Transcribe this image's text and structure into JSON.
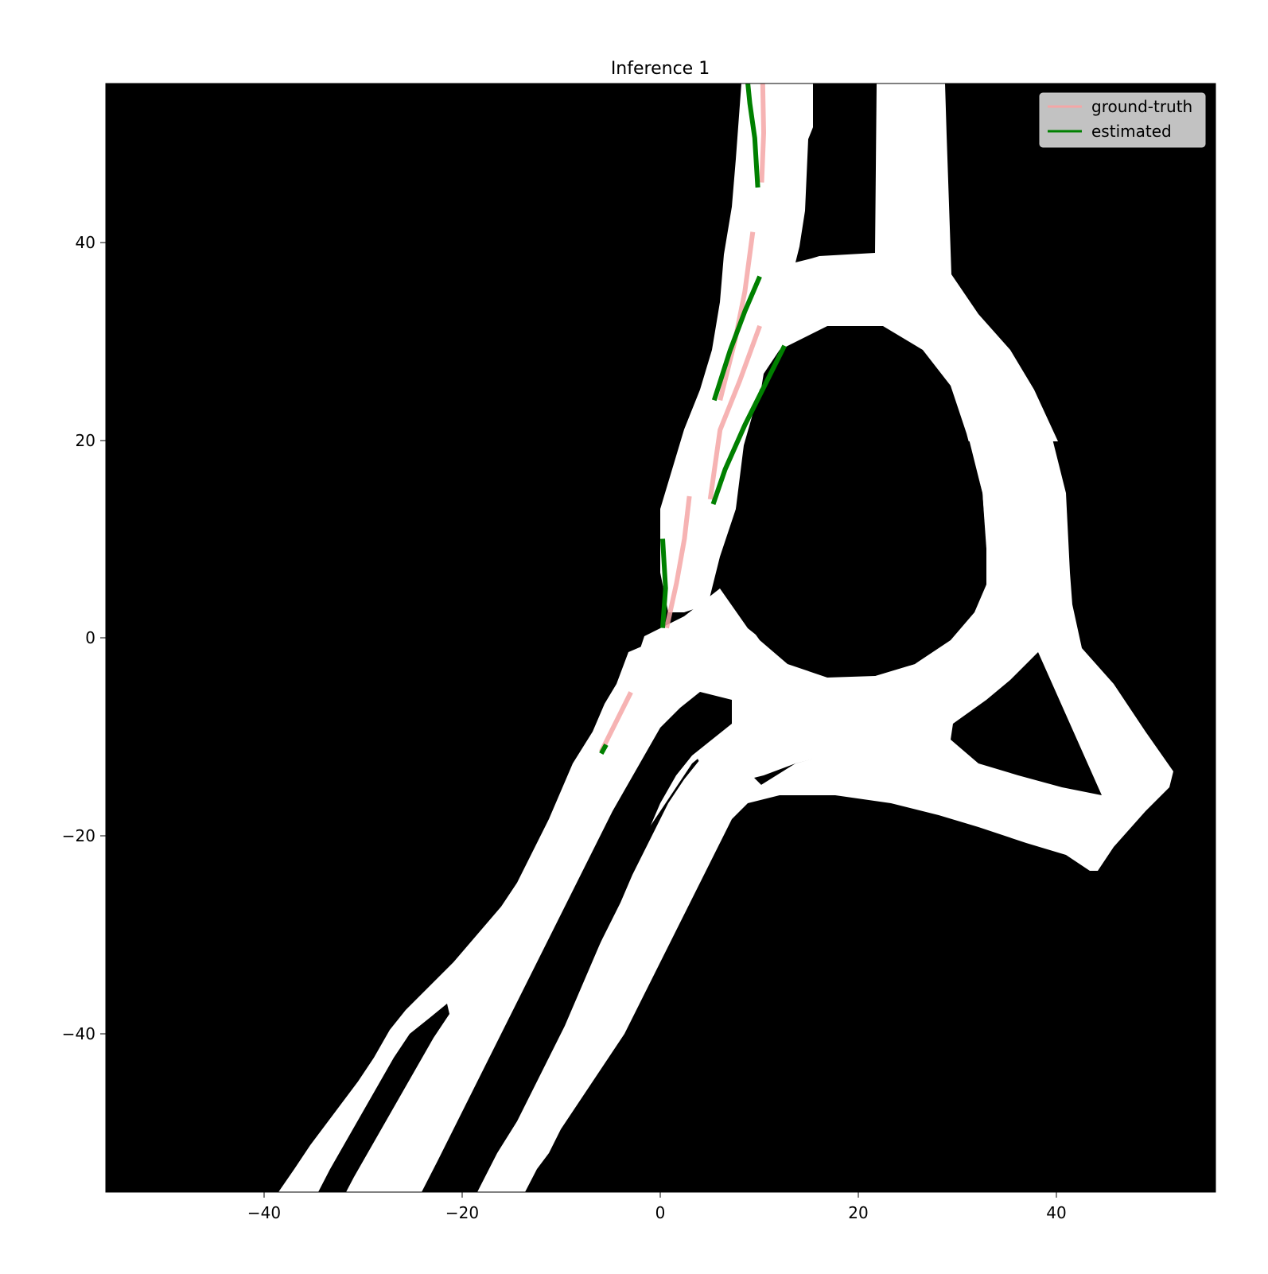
{
  "chart_data": {
    "type": "line",
    "title": "Inference 1",
    "xlabel": "",
    "ylabel": "",
    "xlim": [
      -56,
      56
    ],
    "ylim": [
      -56,
      56
    ],
    "xticks": [
      -40,
      -20,
      0,
      20,
      40
    ],
    "yticks": [
      -40,
      -20,
      0,
      20,
      40
    ],
    "xtick_labels": [
      "−40",
      "−20",
      "0",
      "20",
      "40"
    ],
    "ytick_labels": [
      "−40",
      "−20",
      "0",
      "20",
      "40"
    ],
    "background": "binary drivable-area map (white = road, black = off-road)",
    "grid": false,
    "legend_position": "top-right",
    "colors": {
      "ground_truth": "#f4a6a6",
      "estimated": "#008000",
      "road": "#ffffff",
      "offroad": "#000000"
    },
    "series": [
      {
        "name": "ground-truth",
        "color": "#f4a6a6",
        "segments": [
          [
            [
              -6.0,
              -11.5
            ],
            [
              -3.0,
              -5.5
            ]
          ],
          [
            [
              0.6,
              1.0
            ],
            [
              1.6,
              5.5
            ],
            [
              2.4,
              10.0
            ],
            [
              2.9,
              14.3
            ]
          ],
          [
            [
              5.0,
              14.0
            ],
            [
              6.0,
              21.0
            ],
            [
              8.0,
              26.0
            ],
            [
              10.0,
              31.5
            ]
          ],
          [
            [
              6.0,
              24.0
            ],
            [
              7.5,
              30.0
            ],
            [
              8.5,
              35.0
            ],
            [
              9.3,
              41.0
            ]
          ],
          [
            [
              10.2,
              46.0
            ],
            [
              10.4,
              51.0
            ],
            [
              10.3,
              56.0
            ]
          ]
        ]
      },
      {
        "name": "estimated",
        "color": "#008000",
        "segments": [
          [
            [
              -6.0,
              -11.7
            ],
            [
              -5.5,
              -10.8
            ]
          ],
          [
            [
              0.2,
              1.0
            ],
            [
              0.5,
              5.0
            ],
            [
              0.2,
              10.0
            ]
          ],
          [
            [
              5.3,
              13.5
            ],
            [
              6.5,
              17.0
            ],
            [
              8.5,
              21.5
            ],
            [
              10.5,
              25.5
            ],
            [
              12.5,
              29.5
            ]
          ],
          [
            [
              5.4,
              24.0
            ],
            [
              7.0,
              29.0
            ],
            [
              8.5,
              33.0
            ],
            [
              10.0,
              36.5
            ]
          ],
          [
            [
              9.8,
              45.5
            ],
            [
              9.5,
              50.5
            ],
            [
              9.0,
              54.0
            ],
            [
              8.8,
              56.0
            ]
          ]
        ]
      }
    ]
  }
}
